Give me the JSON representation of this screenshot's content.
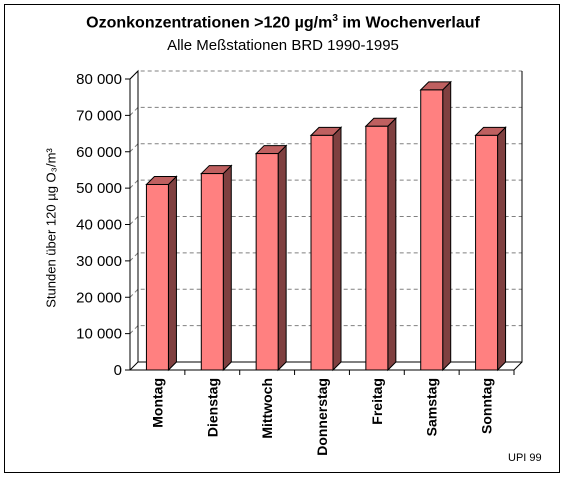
{
  "chart_data": {
    "type": "bar",
    "title_main": "Ozonkonzentrationen >120 µg/m",
    "title_sup": "3",
    "title_rest": " im Wochenverlauf",
    "subtitle": "Alle Meßstationen BRD 1990-1995",
    "ylabel": "Stunden über 120 µg O₃/m³",
    "categories": [
      "Montag",
      "Dienstag",
      "Mittwoch",
      "Donnerstag",
      "Freitag",
      "Samstag",
      "Sonntag"
    ],
    "values": [
      51000,
      54000,
      59500,
      64500,
      67000,
      77000,
      64500
    ],
    "ylim": [
      0,
      80000
    ],
    "yticks": [
      0,
      10000,
      20000,
      30000,
      40000,
      50000,
      60000,
      70000,
      80000
    ],
    "ytick_labels": [
      "0",
      "10 000",
      "20 000",
      "30 000",
      "40 000",
      "50 000",
      "60 000",
      "70 000",
      "80 000"
    ],
    "grid": "dashed horizontal",
    "bar_color": "#ff8080",
    "bar_side_color": "#7f4040",
    "bar_top_color": "#bf6060",
    "source": "UPI 99"
  }
}
